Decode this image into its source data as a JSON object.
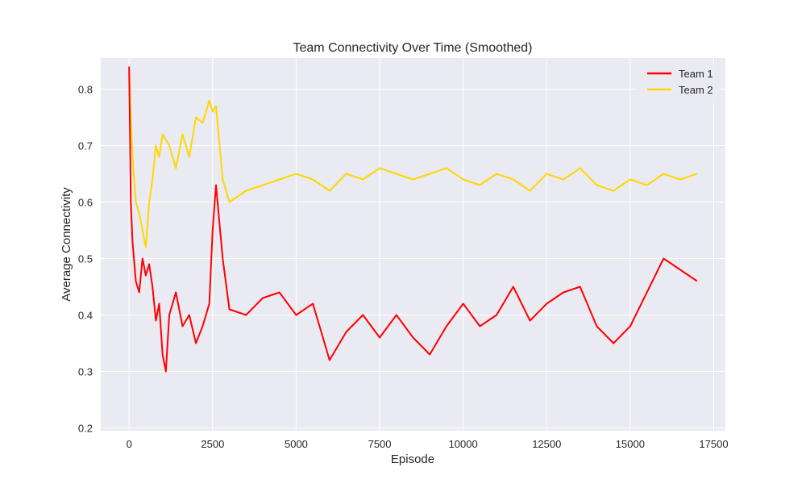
{
  "chart_data": {
    "type": "line",
    "title": "Team Connectivity Over Time (Smoothed)",
    "xlabel": "Episode",
    "ylabel": "Average Connectivity",
    "xlim": [
      -850,
      17850
    ],
    "ylim": [
      0.195,
      0.855
    ],
    "xticks": [
      0,
      2500,
      5000,
      7500,
      10000,
      12500,
      15000,
      17500
    ],
    "xtick_labels": [
      "0",
      "2500",
      "5000",
      "7500",
      "10000",
      "12500",
      "15000",
      "17500"
    ],
    "yticks": [
      0.2,
      0.3,
      0.4,
      0.5,
      0.6,
      0.7,
      0.8
    ],
    "ytick_labels": [
      "0.2",
      "0.3",
      "0.4",
      "0.5",
      "0.6",
      "0.7",
      "0.8"
    ],
    "grid": true,
    "legend_position": "top-right",
    "series": [
      {
        "name": "Team 1",
        "color": "#ff0000",
        "x": [
          0,
          50,
          100,
          200,
          300,
          400,
          500,
          600,
          700,
          800,
          900,
          1000,
          1100,
          1200,
          1400,
          1600,
          1800,
          2000,
          2200,
          2400,
          2500,
          2600,
          2800,
          3000,
          3500,
          4000,
          4500,
          5000,
          5500,
          6000,
          6500,
          7000,
          7500,
          8000,
          8500,
          9000,
          9500,
          10000,
          10500,
          11000,
          11500,
          12000,
          12500,
          13000,
          13500,
          14000,
          14500,
          15000,
          15500,
          16000,
          16500,
          17000
        ],
        "y": [
          0.84,
          0.6,
          0.53,
          0.46,
          0.44,
          0.5,
          0.47,
          0.49,
          0.45,
          0.39,
          0.42,
          0.33,
          0.3,
          0.4,
          0.44,
          0.38,
          0.4,
          0.35,
          0.38,
          0.42,
          0.55,
          0.63,
          0.5,
          0.41,
          0.4,
          0.43,
          0.44,
          0.4,
          0.42,
          0.32,
          0.37,
          0.4,
          0.36,
          0.4,
          0.36,
          0.33,
          0.38,
          0.42,
          0.38,
          0.4,
          0.45,
          0.39,
          0.42,
          0.44,
          0.45,
          0.38,
          0.35,
          0.38,
          0.44,
          0.5,
          0.48,
          0.46
        ]
      },
      {
        "name": "Team 2",
        "color": "#ffd700",
        "x": [
          0,
          50,
          100,
          200,
          300,
          400,
          500,
          600,
          700,
          800,
          900,
          1000,
          1200,
          1400,
          1600,
          1800,
          2000,
          2200,
          2400,
          2500,
          2600,
          2800,
          3000,
          3500,
          4000,
          4500,
          5000,
          5500,
          6000,
          6500,
          7000,
          7500,
          8000,
          8500,
          9000,
          9500,
          10000,
          10500,
          11000,
          11500,
          12000,
          12500,
          13000,
          13500,
          14000,
          14500,
          15000,
          15500,
          16000,
          16500,
          17000
        ],
        "y": [
          0.84,
          0.75,
          0.68,
          0.6,
          0.58,
          0.55,
          0.52,
          0.6,
          0.64,
          0.7,
          0.68,
          0.72,
          0.7,
          0.66,
          0.72,
          0.68,
          0.75,
          0.74,
          0.78,
          0.76,
          0.77,
          0.64,
          0.6,
          0.62,
          0.63,
          0.64,
          0.65,
          0.64,
          0.62,
          0.65,
          0.64,
          0.66,
          0.65,
          0.64,
          0.65,
          0.66,
          0.64,
          0.63,
          0.65,
          0.64,
          0.62,
          0.65,
          0.64,
          0.66,
          0.63,
          0.62,
          0.64,
          0.63,
          0.65,
          0.64,
          0.65
        ]
      }
    ]
  }
}
